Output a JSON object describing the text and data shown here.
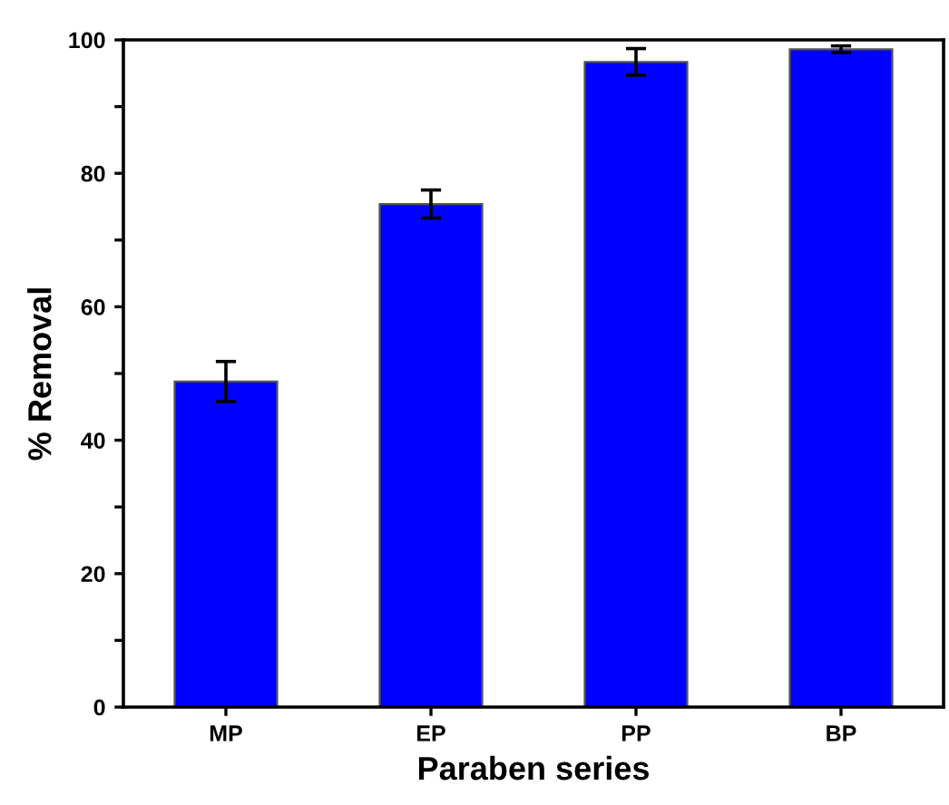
{
  "chart_data": {
    "type": "bar",
    "xlabel": "Paraben series",
    "ylabel": "% Removal",
    "categories": [
      "MP",
      "EP",
      "PP",
      "BP"
    ],
    "values": [
      48.8,
      75.4,
      96.7,
      98.6
    ],
    "errors": [
      3.0,
      2.1,
      2.0,
      0.5
    ],
    "color": "#0000ff",
    "ylim": [
      0,
      100
    ],
    "yticks": [
      0,
      {
        "value": 10,
        "label": null
      },
      20,
      {
        "value": 30,
        "label": null
      },
      40,
      {
        "value": 50,
        "label": null
      },
      60,
      {
        "value": 70,
        "label": null
      },
      80,
      {
        "value": 90,
        "label": null
      },
      100
    ],
    "grid": false,
    "legend": false
  }
}
